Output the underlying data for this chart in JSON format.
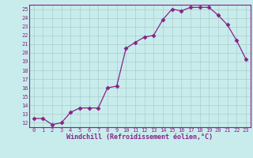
{
  "x": [
    0,
    1,
    2,
    3,
    4,
    5,
    6,
    7,
    8,
    9,
    10,
    11,
    12,
    13,
    14,
    15,
    16,
    17,
    18,
    19,
    20,
    21,
    22,
    23
  ],
  "y": [
    12.5,
    12.5,
    11.8,
    12.0,
    13.2,
    13.7,
    13.7,
    13.7,
    16.0,
    16.2,
    20.5,
    21.2,
    21.8,
    22.0,
    23.8,
    25.0,
    24.8,
    25.2,
    25.2,
    25.2,
    24.3,
    23.2,
    21.4,
    19.3
  ],
  "line_color": "#882288",
  "marker": "D",
  "marker_size": 2.5,
  "bg_color": "#c8ecec",
  "grid_color": "#aacccc",
  "xlabel": "Windchill (Refroidissement éolien,°C)",
  "ylim": [
    11.5,
    25.5
  ],
  "xlim": [
    -0.5,
    23.5
  ],
  "yticks": [
    12,
    13,
    14,
    15,
    16,
    17,
    18,
    19,
    20,
    21,
    22,
    23,
    24,
    25
  ],
  "xticks": [
    0,
    1,
    2,
    3,
    4,
    5,
    6,
    7,
    8,
    9,
    10,
    11,
    12,
    13,
    14,
    15,
    16,
    17,
    18,
    19,
    20,
    21,
    22,
    23
  ],
  "tick_color": "#882288",
  "label_color": "#882288",
  "spine_color": "#882288",
  "tick_fontsize": 5.0,
  "xlabel_fontsize": 6.0
}
